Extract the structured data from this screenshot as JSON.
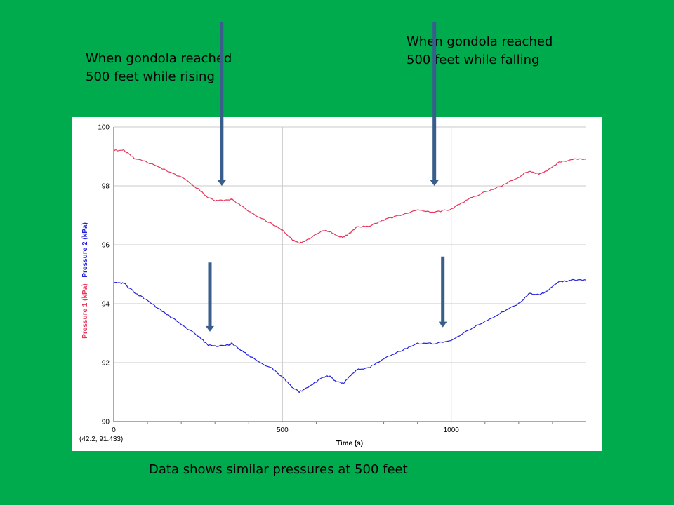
{
  "annotations": {
    "rising": [
      "When gondola reached",
      "500 feet while rising"
    ],
    "falling": [
      "When gondola reached",
      "500 feet while falling"
    ],
    "caption": "Data shows similar pressures at 500 feet"
  },
  "colors": {
    "background": "#00AB4E",
    "pressure1": "#E8355A",
    "pressure2": "#2222DD",
    "arrow": "#3A5E8C",
    "grid": "#C8C8C8"
  },
  "chart_data": {
    "type": "line",
    "title": "",
    "xlabel": "Time (s)",
    "ylabel_parts": [
      "Pressure 1 (kPa)",
      "Pressure 2 (kPa)"
    ],
    "xlim": [
      0,
      1400
    ],
    "ylim": [
      90,
      100
    ],
    "x_ticks": [
      0,
      500,
      1000
    ],
    "y_ticks": [
      90,
      92,
      94,
      96,
      98,
      100
    ],
    "grid": true,
    "cursor_readout": "(42.2, 91.433)",
    "series": [
      {
        "name": "Pressure 1 (kPa)",
        "color": "#E8355A",
        "points": [
          [
            0,
            99.2
          ],
          [
            30,
            99.2
          ],
          [
            60,
            98.95
          ],
          [
            100,
            98.8
          ],
          [
            150,
            98.55
          ],
          [
            200,
            98.3
          ],
          [
            250,
            97.9
          ],
          [
            280,
            97.6
          ],
          [
            300,
            97.5
          ],
          [
            340,
            97.5
          ],
          [
            350,
            97.55
          ],
          [
            380,
            97.3
          ],
          [
            420,
            97.0
          ],
          [
            470,
            96.7
          ],
          [
            500,
            96.5
          ],
          [
            530,
            96.15
          ],
          [
            550,
            96.05
          ],
          [
            580,
            96.2
          ],
          [
            620,
            96.5
          ],
          [
            640,
            96.45
          ],
          [
            660,
            96.3
          ],
          [
            680,
            96.25
          ],
          [
            700,
            96.4
          ],
          [
            720,
            96.6
          ],
          [
            760,
            96.65
          ],
          [
            800,
            96.85
          ],
          [
            850,
            97.0
          ],
          [
            900,
            97.2
          ],
          [
            950,
            97.1
          ],
          [
            1000,
            97.2
          ],
          [
            1050,
            97.55
          ],
          [
            1100,
            97.8
          ],
          [
            1150,
            98.0
          ],
          [
            1200,
            98.3
          ],
          [
            1230,
            98.5
          ],
          [
            1260,
            98.4
          ],
          [
            1280,
            98.5
          ],
          [
            1320,
            98.8
          ],
          [
            1360,
            98.9
          ],
          [
            1400,
            98.9
          ]
        ]
      },
      {
        "name": "Pressure 2 (kPa)",
        "color": "#2222DD",
        "points": [
          [
            0,
            94.7
          ],
          [
            30,
            94.7
          ],
          [
            60,
            94.4
          ],
          [
            100,
            94.1
          ],
          [
            150,
            93.7
          ],
          [
            200,
            93.3
          ],
          [
            250,
            92.9
          ],
          [
            280,
            92.6
          ],
          [
            300,
            92.55
          ],
          [
            340,
            92.6
          ],
          [
            350,
            92.65
          ],
          [
            380,
            92.4
          ],
          [
            420,
            92.1
          ],
          [
            470,
            91.8
          ],
          [
            500,
            91.5
          ],
          [
            530,
            91.15
          ],
          [
            550,
            91.0
          ],
          [
            580,
            91.2
          ],
          [
            620,
            91.5
          ],
          [
            640,
            91.55
          ],
          [
            660,
            91.35
          ],
          [
            680,
            91.3
          ],
          [
            700,
            91.55
          ],
          [
            720,
            91.75
          ],
          [
            760,
            91.85
          ],
          [
            800,
            92.15
          ],
          [
            850,
            92.4
          ],
          [
            900,
            92.65
          ],
          [
            950,
            92.65
          ],
          [
            1000,
            92.75
          ],
          [
            1050,
            93.1
          ],
          [
            1100,
            93.4
          ],
          [
            1150,
            93.7
          ],
          [
            1200,
            94.0
          ],
          [
            1230,
            94.35
          ],
          [
            1260,
            94.3
          ],
          [
            1280,
            94.4
          ],
          [
            1320,
            94.75
          ],
          [
            1360,
            94.8
          ],
          [
            1400,
            94.8
          ]
        ]
      }
    ],
    "arrows": [
      {
        "x": 320,
        "y_from": 103.55,
        "y_to": 98.0
      },
      {
        "x": 950,
        "y_from": 103.55,
        "y_to": 98.0
      },
      {
        "x": 285,
        "y_from": 95.4,
        "y_to": 93.05
      },
      {
        "x": 975,
        "y_from": 95.6,
        "y_to": 93.2
      }
    ]
  }
}
